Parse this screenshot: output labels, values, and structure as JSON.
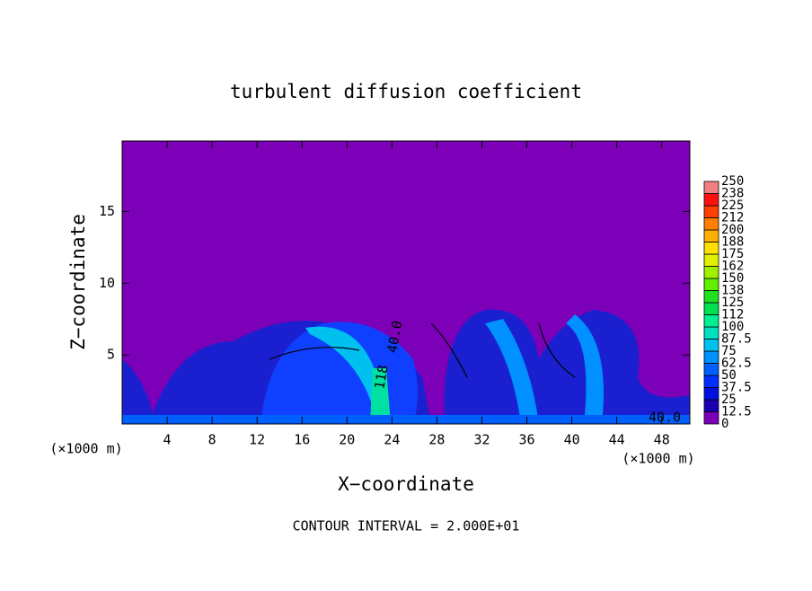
{
  "chart_data": {
    "type": "contour",
    "title": "turbulent diffusion coefficient",
    "x_label": "X−coordinate",
    "y_label": "Z−coordinate",
    "x_unit": "(×1000 m)",
    "y_unit": "(×1000 m)",
    "footer": "CONTOUR INTERVAL = 2.000E+01",
    "xlim": [
      0,
      50.5
    ],
    "xticks": [
      4,
      8,
      12,
      16,
      20,
      24,
      28,
      32,
      36,
      40,
      44,
      48
    ],
    "ylim": [
      0.2,
      19.9
    ],
    "yticks": [
      5,
      10,
      15
    ],
    "annotations": [
      "40.0",
      "40.0",
      "118"
    ],
    "colorbar": {
      "levels": [
        0,
        12.5,
        25,
        37.5,
        50,
        62.5,
        75,
        87.5,
        100,
        112,
        125,
        138,
        150,
        162,
        175,
        188,
        200,
        212,
        225,
        238,
        250
      ],
      "colors": [
        "#7c00b8",
        "#1a00b0",
        "#0010e0",
        "#0030ff",
        "#0060ff",
        "#0090ff",
        "#00c0f0",
        "#00e0c0",
        "#00f090",
        "#00e050",
        "#20e020",
        "#60f000",
        "#a0f000",
        "#e0f000",
        "#ffe000",
        "#ffb000",
        "#ff8000",
        "#ff4000",
        "#ff1010",
        "#f08080"
      ]
    }
  }
}
